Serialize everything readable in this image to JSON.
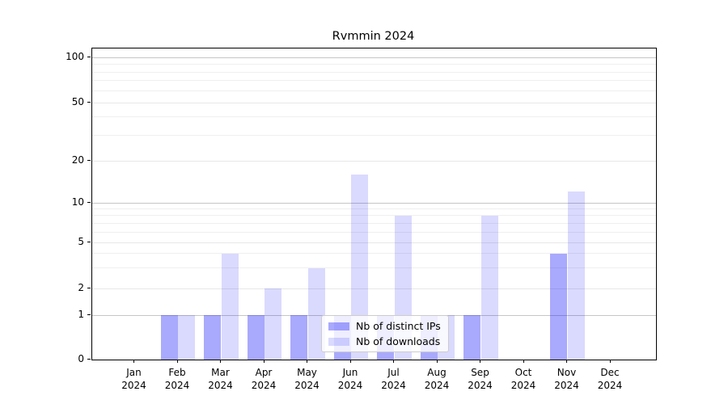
{
  "chart_data": {
    "type": "bar",
    "title": "Rvmmin 2024",
    "categories": [
      "Jan",
      "Feb",
      "Mar",
      "Apr",
      "May",
      "Jun",
      "Jul",
      "Aug",
      "Sep",
      "Oct",
      "Nov",
      "Dec"
    ],
    "category_year": "2024",
    "series": [
      {
        "name": "Nb of distinct IPs",
        "color": "rgba(10,10,250,0.35)",
        "values": [
          0,
          1,
          1,
          1,
          1,
          1,
          1,
          1,
          1,
          0,
          4,
          0
        ]
      },
      {
        "name": "Nb of downloads",
        "color": "rgba(10,10,250,0.15)",
        "values": [
          0,
          1,
          4,
          2,
          3,
          16,
          8,
          1,
          8,
          0,
          12,
          0
        ]
      }
    ],
    "y_axis": {
      "scale": "log-like",
      "ticks": [
        0,
        1,
        2,
        5,
        10,
        20,
        50,
        100
      ],
      "decade_ticks": [
        1,
        10,
        100
      ],
      "minor_ticks": [
        3,
        4,
        6,
        7,
        8,
        9,
        30,
        40,
        60,
        70,
        80,
        90
      ]
    },
    "x_axis": {
      "label_line2": "2024"
    },
    "legend": {
      "position": "lower-center"
    },
    "grid": {
      "decade_color": "#c6c6c6",
      "labeled_color": "#e7e7e7",
      "minor_color": "#efefef"
    }
  }
}
